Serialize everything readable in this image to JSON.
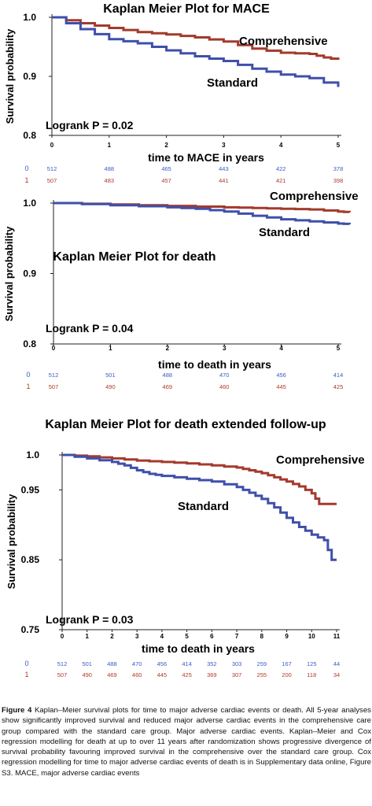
{
  "colors": {
    "standard": "#3f4faa",
    "comprehensive": "#a33a2c",
    "risk_standard": "#3b5cc4",
    "risk_comprehensive": "#b03a2e"
  },
  "chart_data": [
    {
      "type": "line",
      "title": "Kaplan Meier Plot for MACE",
      "xlabel": "time to MACE in years",
      "ylabel": "Survival probability",
      "xlim": [
        0,
        5
      ],
      "ylim": [
        0.8,
        1.0
      ],
      "xticks": [
        "0",
        "1",
        "2",
        "3",
        "4",
        "5"
      ],
      "yticks": [
        "0.8",
        "0.9",
        "1.0"
      ],
      "stat_label": "Logrank P = 0.02",
      "series": [
        {
          "name": "Comprehensive",
          "x": [
            0,
            0.5,
            1,
            1.5,
            2,
            2.5,
            3,
            3.5,
            4,
            4.5,
            4.75,
            5
          ],
          "y": [
            1.0,
            0.99,
            0.982,
            0.975,
            0.971,
            0.966,
            0.959,
            0.947,
            0.94,
            0.938,
            0.932,
            0.928
          ]
        },
        {
          "name": "Standard",
          "x": [
            0,
            0.5,
            1,
            1.5,
            2,
            2.5,
            3,
            3.5,
            4,
            4.5,
            5
          ],
          "y": [
            1.0,
            0.98,
            0.963,
            0.956,
            0.944,
            0.934,
            0.926,
            0.913,
            0.903,
            0.897,
            0.882
          ]
        }
      ],
      "risk_table": {
        "groups": [
          "0",
          "1"
        ],
        "rows": [
          [
            "512",
            "488",
            "465",
            "443",
            "422",
            "378"
          ],
          [
            "507",
            "483",
            "457",
            "441",
            "421",
            "398"
          ]
        ]
      }
    },
    {
      "type": "line",
      "title": "Kaplan Meier Plot for death",
      "xlabel": "time to death in years",
      "ylabel": "Survival probability",
      "xlim": [
        0,
        5
      ],
      "ylim": [
        0.8,
        1.0
      ],
      "xticks": [
        "0",
        "1",
        "2",
        "3",
        "4",
        "5"
      ],
      "yticks": [
        "0.8",
        "0.9",
        "1.0"
      ],
      "stat_label": "Logrank P = 0.04",
      "series": [
        {
          "name": "Comprehensive",
          "x": [
            0,
            1,
            2,
            3,
            3.5,
            4,
            4.5,
            5,
            5.2
          ],
          "y": [
            1.0,
            0.998,
            0.996,
            0.994,
            0.993,
            0.992,
            0.991,
            0.988,
            0.987
          ]
        },
        {
          "name": "Standard",
          "x": [
            0,
            1,
            2,
            2.5,
            3,
            3.5,
            4,
            4.5,
            5,
            5.2
          ],
          "y": [
            1.0,
            0.997,
            0.994,
            0.992,
            0.988,
            0.982,
            0.977,
            0.974,
            0.971,
            0.97
          ]
        }
      ],
      "risk_table": {
        "groups": [
          "0",
          "1"
        ],
        "rows": [
          [
            "512",
            "501",
            "488",
            "470",
            "456",
            "414"
          ],
          [
            "507",
            "490",
            "469",
            "460",
            "445",
            "425"
          ]
        ]
      }
    },
    {
      "type": "line",
      "title": "Kaplan Meier Plot for death extended follow-up",
      "xlabel": "time to death in years",
      "ylabel": "Survival probability",
      "xlim": [
        0,
        11
      ],
      "ylim": [
        0.75,
        1.0
      ],
      "xticks": [
        "0",
        "1",
        "2",
        "3",
        "4",
        "5",
        "6",
        "7",
        "8",
        "9",
        "10",
        "11"
      ],
      "yticks": [
        "0.75",
        "0.85",
        "0.95",
        "1.0"
      ],
      "stat_label": "Logrank P = 0.03",
      "series": [
        {
          "name": "Comprehensive",
          "x": [
            0,
            1,
            2,
            3,
            4,
            5,
            6,
            7,
            7.5,
            8,
            8.5,
            9,
            9.5,
            10,
            10.3,
            10.5,
            11
          ],
          "y": [
            1.0,
            0.998,
            0.995,
            0.992,
            0.99,
            0.988,
            0.985,
            0.982,
            0.978,
            0.974,
            0.968,
            0.962,
            0.955,
            0.945,
            0.93,
            0.93,
            0.93
          ]
        },
        {
          "name": "Standard",
          "x": [
            0,
            1,
            2,
            2.5,
            3,
            3.5,
            4,
            5,
            6,
            7,
            7.5,
            8,
            8.5,
            9,
            9.5,
            10,
            10.5,
            10.8,
            11
          ],
          "y": [
            1.0,
            0.995,
            0.99,
            0.985,
            0.978,
            0.973,
            0.97,
            0.966,
            0.962,
            0.954,
            0.946,
            0.937,
            0.925,
            0.91,
            0.897,
            0.886,
            0.878,
            0.85,
            0.85
          ]
        }
      ],
      "risk_table": {
        "groups": [
          "0",
          "1"
        ],
        "rows": [
          [
            "512",
            "501",
            "488",
            "470",
            "456",
            "414",
            "352",
            "303",
            "259",
            "167",
            "125",
            "44"
          ],
          [
            "507",
            "490",
            "469",
            "460",
            "445",
            "425",
            "369",
            "307",
            "255",
            "200",
            "118",
            "34"
          ]
        ]
      }
    }
  ],
  "caption": {
    "label": "Figure 4",
    "text": " Kaplan–Meier survival plots for time to major adverse cardiac events or death. All 5-year analyses show significantly improved survival and reduced major adverse cardiac events in the comprehensive care group compared with the standard care group. Major adverse cardiac events. Kaplan–Meier and Cox regression modelling for death at up to over 11 years after randomization shows progressive divergence of survival probability favouring improved survival in the comprehensive over the standard care group. Cox regression modelling for time to major adverse cardiac events of death is in Supplementary data online, Figure S3. MACE, major adverse cardiac events"
  }
}
